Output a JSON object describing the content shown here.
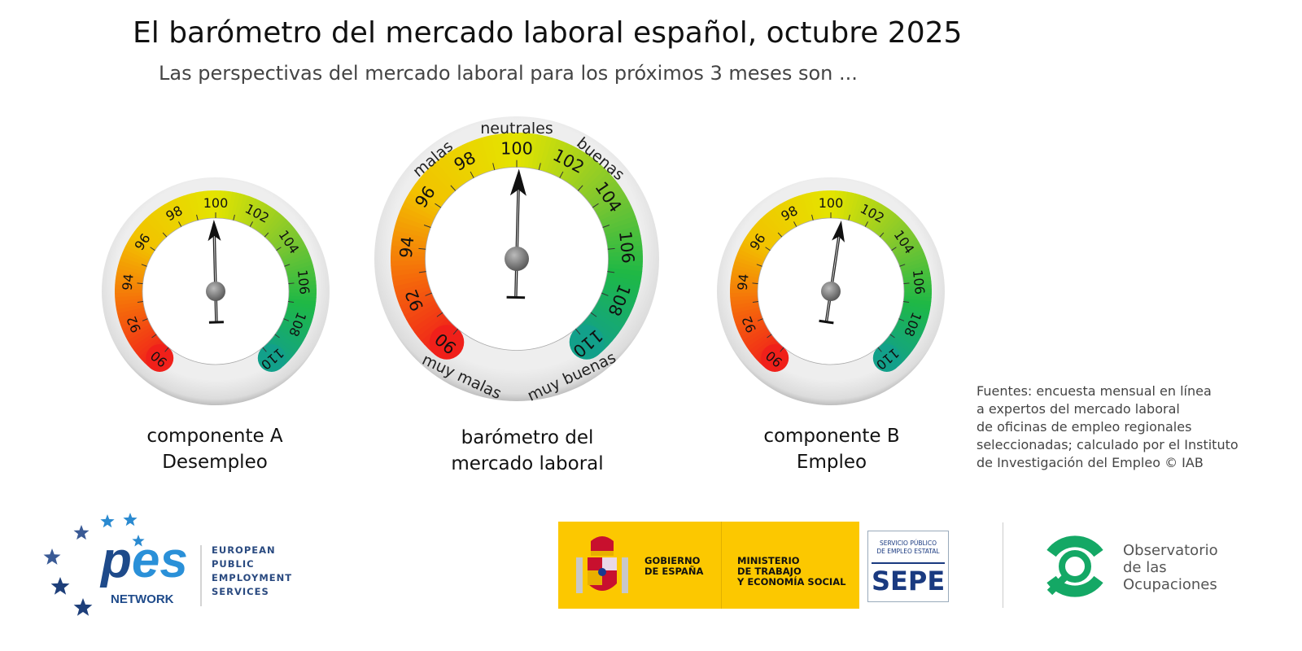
{
  "header": {
    "title": "El barómetro del mercado laboral español, octubre 2025",
    "subtitle": "Las perspectivas del mercado laboral para los próximos 3 meses son ..."
  },
  "chart_data": [
    {
      "type": "gauge",
      "caption": [
        "componente A",
        "Desempleo"
      ],
      "range": [
        90,
        110
      ],
      "ticks": [
        "90",
        "92",
        "94",
        "96",
        "98",
        "100",
        "102",
        "104",
        "106",
        "108",
        "110"
      ],
      "value": 99.9
    },
    {
      "type": "gauge",
      "caption": [
        "barómetro del",
        "mercado laboral"
      ],
      "range": [
        90,
        110
      ],
      "ticks": [
        "90",
        "92",
        "94",
        "96",
        "98",
        "100",
        "102",
        "104",
        "106",
        "108",
        "110"
      ],
      "value": 100.1,
      "zones": [
        "muy malas",
        "malas",
        "neutrales",
        "buenas",
        "muy buenas"
      ]
    },
    {
      "type": "gauge",
      "caption": [
        "componente B",
        "Empleo"
      ],
      "range": [
        90,
        110
      ],
      "ticks": [
        "90",
        "92",
        "94",
        "96",
        "98",
        "100",
        "102",
        "104",
        "106",
        "108",
        "110"
      ],
      "value": 100.6
    }
  ],
  "colors": {
    "low": "#f0201a",
    "mid_low": "#f58a0a",
    "neutral": "#e4e400",
    "mid_high": "#6cc030",
    "high": "#12a08a"
  },
  "source": [
    "Fuentes: encuesta mensual en línea",
    "a expertos del mercado laboral",
    "de oficinas de empleo regionales",
    "seleccionadas; calculado por el Instituto",
    "de Investigación del Empleo © IAB"
  ],
  "logos": {
    "pes": {
      "mark": "es",
      "network": "NETWORK",
      "lines": [
        "EUROPEAN",
        "PUBLIC",
        "EMPLOYMENT",
        "SERVICES"
      ]
    },
    "gobierno": [
      "GOBIERNO",
      "DE ESPAÑA"
    ],
    "ministerio": [
      "MINISTERIO",
      "DE TRABAJO",
      "Y ECONOMÍA SOCIAL"
    ],
    "sepe": {
      "top": [
        "SERVICIO PÚBLICO",
        "DE EMPLEO ESTATAL"
      ],
      "name": "SEPE"
    },
    "observatorio": [
      "Observatorio",
      "de las",
      "Ocupaciones"
    ]
  }
}
